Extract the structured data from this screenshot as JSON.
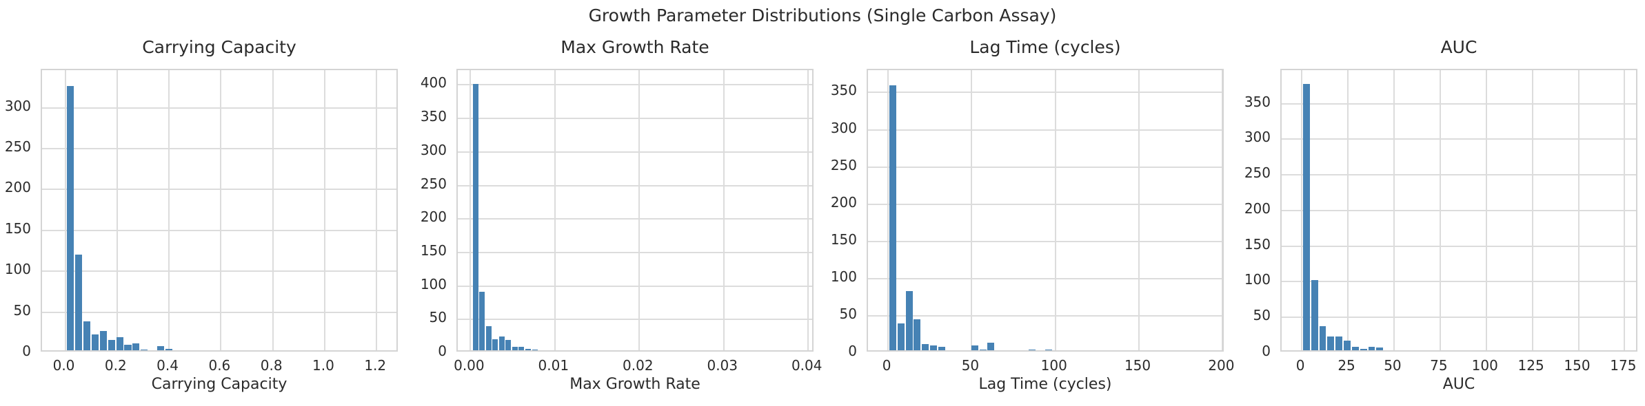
{
  "figure": {
    "title": "Growth Parameter Distributions (Single Carbon Assay)",
    "background_color": "#ffffff",
    "bar_color": "#4682b4",
    "grid_color": "#dcdcdc",
    "spine_color": "#d4d4d4",
    "text_color": "#2b2b2b",
    "grid": true,
    "legend": "none"
  },
  "chart_data": [
    {
      "type": "bar",
      "subtype": "histogram",
      "title": "Carrying Capacity",
      "xlabel": "Carrying Capacity",
      "ylabel": "",
      "xlim": [
        -0.089,
        1.287
      ],
      "ylim": [
        0,
        346
      ],
      "xticks": [
        {
          "v": 0.0,
          "label": "0.0"
        },
        {
          "v": 0.2,
          "label": "0.2"
        },
        {
          "v": 0.4,
          "label": "0.4"
        },
        {
          "v": 0.6,
          "label": "0.6"
        },
        {
          "v": 0.8,
          "label": "0.8"
        },
        {
          "v": 1.0,
          "label": "1.0"
        },
        {
          "v": 1.2,
          "label": "1.2"
        }
      ],
      "yticks": [
        0,
        50,
        100,
        150,
        200,
        250,
        300
      ],
      "bin_width": 0.0317,
      "bars": [
        [
          0.004,
          327
        ],
        [
          0.0357,
          120
        ],
        [
          0.0674,
          39
        ],
        [
          0.0991,
          23
        ],
        [
          0.1308,
          27
        ],
        [
          0.1625,
          16
        ],
        [
          0.1942,
          19
        ],
        [
          0.2259,
          10
        ],
        [
          0.2576,
          12
        ],
        [
          0.2893,
          4
        ],
        [
          0.321,
          3
        ],
        [
          0.3527,
          8
        ],
        [
          0.3844,
          5
        ],
        [
          0.4795,
          3
        ],
        [
          1.2398,
          1
        ]
      ]
    },
    {
      "type": "bar",
      "subtype": "histogram",
      "title": "Max Growth Rate",
      "xlabel": "Max Growth Rate",
      "ylabel": "",
      "xlim": [
        -0.0015,
        0.0408
      ],
      "ylim": [
        0,
        422
      ],
      "xticks": [
        {
          "v": 0.0,
          "label": "0.00"
        },
        {
          "v": 0.01,
          "label": "0.01"
        },
        {
          "v": 0.02,
          "label": "0.02"
        },
        {
          "v": 0.03,
          "label": "0.03"
        },
        {
          "v": 0.04,
          "label": "0.04"
        }
      ],
      "yticks": [
        0,
        50,
        100,
        150,
        200,
        250,
        300,
        350,
        400
      ],
      "bin_width": 0.00078,
      "bars": [
        [
          0.0002,
          401
        ],
        [
          0.00098,
          91
        ],
        [
          0.00176,
          40
        ],
        [
          0.00254,
          21
        ],
        [
          0.00332,
          25
        ],
        [
          0.0041,
          19
        ],
        [
          0.00488,
          9
        ],
        [
          0.00566,
          9
        ],
        [
          0.00644,
          6
        ],
        [
          0.00722,
          5
        ],
        [
          0.01112,
          2
        ],
        [
          0.01618,
          2
        ],
        [
          0.03942,
          1
        ]
      ]
    },
    {
      "type": "bar",
      "subtype": "histogram",
      "title": "Lag Time (cycles)",
      "xlabel": "Lag Time (cycles)",
      "ylabel": "",
      "xlim": [
        -12,
        201.5
      ],
      "ylim": [
        0,
        380
      ],
      "xticks": [
        {
          "v": 0,
          "label": "0"
        },
        {
          "v": 50,
          "label": "50"
        },
        {
          "v": 100,
          "label": "100"
        },
        {
          "v": 150,
          "label": "150"
        },
        {
          "v": 200,
          "label": "200"
        }
      ],
      "yticks": [
        0,
        50,
        100,
        150,
        200,
        250,
        300,
        350
      ],
      "bin_width": 4.9,
      "bars": [
        [
          0.3,
          360
        ],
        [
          5.2,
          40
        ],
        [
          10.1,
          83
        ],
        [
          15.0,
          45
        ],
        [
          19.9,
          12
        ],
        [
          24.8,
          10
        ],
        [
          29.7,
          8
        ],
        [
          34.6,
          4
        ],
        [
          49.3,
          10
        ],
        [
          54.2,
          5
        ],
        [
          59.1,
          14
        ],
        [
          73.8,
          3
        ],
        [
          78.7,
          3
        ],
        [
          83.6,
          5
        ],
        [
          88.5,
          3
        ],
        [
          93.4,
          5
        ],
        [
          122.8,
          2
        ],
        [
          166.9,
          2
        ],
        [
          191.4,
          4
        ]
      ]
    },
    {
      "type": "bar",
      "subtype": "histogram",
      "title": "AUC",
      "xlabel": "AUC",
      "ylabel": "",
      "xlim": [
        -10.9,
        182.7
      ],
      "ylim": [
        0,
        397
      ],
      "xticks": [
        {
          "v": 0,
          "label": "0"
        },
        {
          "v": 25,
          "label": "25"
        },
        {
          "v": 50,
          "label": "50"
        },
        {
          "v": 75,
          "label": "75"
        },
        {
          "v": 100,
          "label": "100"
        },
        {
          "v": 125,
          "label": "125"
        },
        {
          "v": 150,
          "label": "150"
        },
        {
          "v": 175,
          "label": "175"
        }
      ],
      "yticks": [
        0,
        50,
        100,
        150,
        200,
        250,
        300,
        350
      ],
      "bin_width": 4.42,
      "bars": [
        [
          0.3,
          378
        ],
        [
          4.72,
          102
        ],
        [
          9.14,
          38
        ],
        [
          13.56,
          23
        ],
        [
          17.98,
          23
        ],
        [
          22.4,
          17
        ],
        [
          26.82,
          9
        ],
        [
          31.24,
          6
        ],
        [
          35.66,
          9
        ],
        [
          40.08,
          8
        ],
        [
          48.92,
          2
        ],
        [
          57.76,
          2
        ],
        [
          62.18,
          2
        ],
        [
          175.9,
          1
        ]
      ]
    }
  ]
}
